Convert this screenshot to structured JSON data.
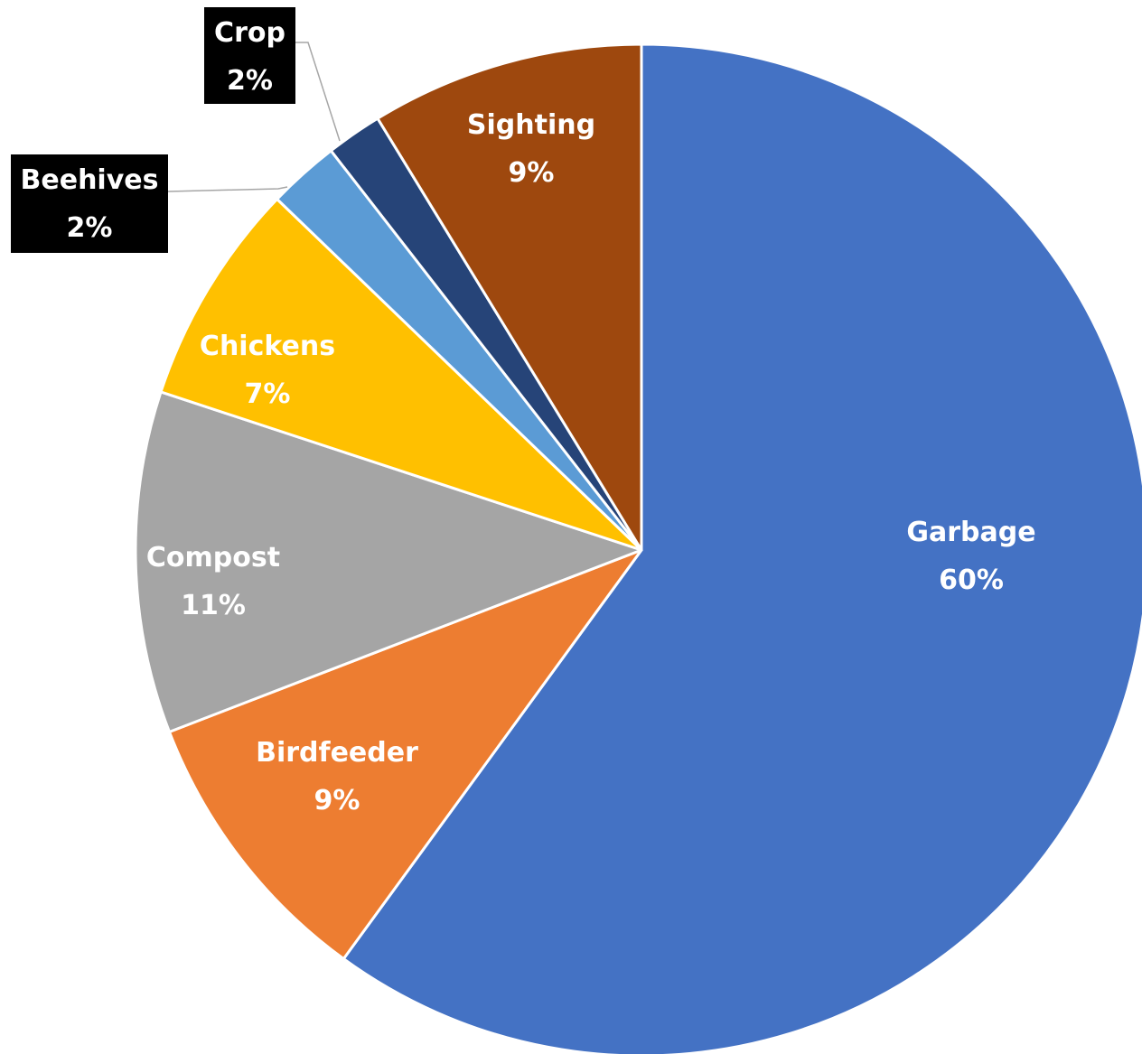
{
  "chart_data": {
    "type": "pie",
    "title": "",
    "start": "12 o'clock",
    "direction": "clockwise",
    "slices": [
      {
        "label": "Garbage",
        "percent_text": "60%",
        "value": 60.5,
        "color": "#4472C4",
        "text_color": "#FFFFFF",
        "label_style": "inside"
      },
      {
        "label": "Birdfeeder",
        "percent_text": "9%",
        "value": 9.2,
        "color": "#ED7D31",
        "text_color": "#FFFFFF",
        "label_style": "inside"
      },
      {
        "label": "Compost",
        "percent_text": "11%",
        "value": 11.0,
        "color": "#A5A5A5",
        "text_color": "#FFFFFF",
        "label_style": "inside"
      },
      {
        "label": "Chickens",
        "percent_text": "7%",
        "value": 7.2,
        "color": "#FFC000",
        "text_color": "#FFFFFF",
        "label_style": "inside"
      },
      {
        "label": "Beehives",
        "percent_text": "2%",
        "value": 2.3,
        "color": "#5B9BD5",
        "text_color": "#FFFFFF",
        "label_style": "callout-box"
      },
      {
        "label": "Crop",
        "percent_text": "2%",
        "value": 1.8,
        "color": "#264478",
        "text_color": "#FFFFFF",
        "label_style": "callout-box"
      },
      {
        "label": "Sighting",
        "percent_text": "9%",
        "value": 8.8,
        "color": "#9E480E",
        "text_color": "#FFFFFF",
        "label_style": "inside"
      }
    ],
    "slice_border_color": "#FFFFFF",
    "callout_box_color": "#000000",
    "leader_line_color": "#A6A6A6"
  }
}
